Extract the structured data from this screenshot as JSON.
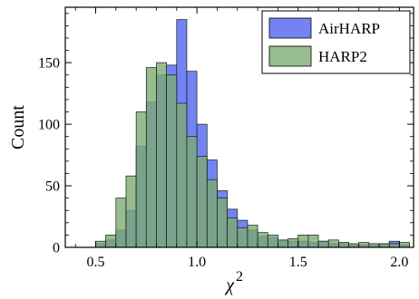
{
  "chart_data": {
    "type": "histogram",
    "xlabel": "χ",
    "xlabel_superscript": "2",
    "ylabel": "Count",
    "xlim": [
      0.35,
      2.07
    ],
    "ylim": [
      0,
      195
    ],
    "xticks": [
      "0.5",
      "1.0",
      "1.5",
      "2.0"
    ],
    "yticks": [
      "0",
      "50",
      "100",
      "150"
    ],
    "bin_width": 0.05,
    "legend_position": "top-right",
    "series": [
      {
        "name": "AirHARP",
        "color": "#5a6ef0",
        "opacity": 0.85,
        "bins": [
          {
            "x0": 0.5,
            "value": 3
          },
          {
            "x0": 0.55,
            "value": 6
          },
          {
            "x0": 0.6,
            "value": 14
          },
          {
            "x0": 0.65,
            "value": 30
          },
          {
            "x0": 0.7,
            "value": 82
          },
          {
            "x0": 0.75,
            "value": 118
          },
          {
            "x0": 0.8,
            "value": 140
          },
          {
            "x0": 0.85,
            "value": 148
          },
          {
            "x0": 0.9,
            "value": 185
          },
          {
            "x0": 0.95,
            "value": 143
          },
          {
            "x0": 1.0,
            "value": 100
          },
          {
            "x0": 1.05,
            "value": 71
          },
          {
            "x0": 1.1,
            "value": 46
          },
          {
            "x0": 1.15,
            "value": 31
          },
          {
            "x0": 1.2,
            "value": 22
          },
          {
            "x0": 1.25,
            "value": 14
          },
          {
            "x0": 1.3,
            "value": 9
          },
          {
            "x0": 1.35,
            "value": 8
          },
          {
            "x0": 1.4,
            "value": 6
          },
          {
            "x0": 1.45,
            "value": 5
          },
          {
            "x0": 1.5,
            "value": 5
          },
          {
            "x0": 1.55,
            "value": 4
          },
          {
            "x0": 1.6,
            "value": 5
          },
          {
            "x0": 1.65,
            "value": 3
          },
          {
            "x0": 1.7,
            "value": 3
          },
          {
            "x0": 1.75,
            "value": 2
          },
          {
            "x0": 1.8,
            "value": 2
          },
          {
            "x0": 1.85,
            "value": 2
          },
          {
            "x0": 1.9,
            "value": 3
          },
          {
            "x0": 1.95,
            "value": 5
          },
          {
            "x0": 2.0,
            "value": 2
          }
        ]
      },
      {
        "name": "HARP2",
        "color": "#7cab73",
        "opacity": 0.8,
        "bins": [
          {
            "x0": 0.5,
            "value": 5
          },
          {
            "x0": 0.55,
            "value": 10
          },
          {
            "x0": 0.6,
            "value": 40
          },
          {
            "x0": 0.65,
            "value": 58
          },
          {
            "x0": 0.7,
            "value": 110
          },
          {
            "x0": 0.75,
            "value": 146
          },
          {
            "x0": 0.8,
            "value": 150
          },
          {
            "x0": 0.85,
            "value": 140
          },
          {
            "x0": 0.9,
            "value": 117
          },
          {
            "x0": 0.95,
            "value": 90
          },
          {
            "x0": 1.0,
            "value": 74
          },
          {
            "x0": 1.05,
            "value": 55
          },
          {
            "x0": 1.1,
            "value": 40
          },
          {
            "x0": 1.15,
            "value": 24
          },
          {
            "x0": 1.2,
            "value": 16
          },
          {
            "x0": 1.25,
            "value": 18
          },
          {
            "x0": 1.3,
            "value": 12
          },
          {
            "x0": 1.35,
            "value": 10
          },
          {
            "x0": 1.4,
            "value": 6
          },
          {
            "x0": 1.45,
            "value": 7
          },
          {
            "x0": 1.5,
            "value": 10
          },
          {
            "x0": 1.55,
            "value": 10
          },
          {
            "x0": 1.6,
            "value": 5
          },
          {
            "x0": 1.65,
            "value": 6
          },
          {
            "x0": 1.7,
            "value": 4
          },
          {
            "x0": 1.75,
            "value": 3
          },
          {
            "x0": 1.8,
            "value": 4
          },
          {
            "x0": 1.85,
            "value": 3
          },
          {
            "x0": 1.9,
            "value": 3
          },
          {
            "x0": 1.95,
            "value": 3
          },
          {
            "x0": 2.0,
            "value": 4
          }
        ]
      }
    ],
    "overlap_color": "#3b7a7d"
  }
}
